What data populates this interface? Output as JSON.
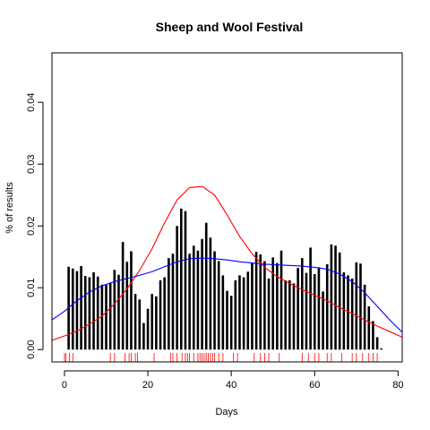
{
  "chart_data": {
    "type": "bar",
    "title": "Sheep and Wool Festival",
    "xlabel": "Days",
    "ylabel": "% of results",
    "xlim": [
      -3,
      81
    ],
    "ylim": [
      -0.002,
      0.048
    ],
    "x_ticks": [
      0,
      20,
      40,
      60,
      80
    ],
    "y_ticks": [
      0.0,
      0.01,
      0.02,
      0.03,
      0.04
    ],
    "x_tick_labels": [
      "0",
      "20",
      "40",
      "60",
      "80"
    ],
    "y_tick_labels": [
      "0.00",
      "0.01",
      "0.02",
      "0.03",
      "0.04"
    ],
    "bars": {
      "color": "#000000",
      "x": [
        1,
        2,
        3,
        4,
        5,
        6,
        7,
        8,
        9,
        10,
        11,
        12,
        13,
        14,
        15,
        16,
        17,
        18,
        19,
        20,
        21,
        22,
        23,
        24,
        25,
        26,
        27,
        28,
        29,
        30,
        31,
        32,
        33,
        34,
        35,
        36,
        37,
        38,
        39,
        40,
        41,
        42,
        43,
        44,
        45,
        46,
        47,
        48,
        49,
        50,
        51,
        52,
        53,
        54,
        55,
        56,
        57,
        58,
        59,
        60,
        61,
        62,
        63,
        64,
        65,
        66,
        67,
        68,
        69,
        70,
        71,
        72,
        73,
        74,
        75,
        76,
        77
      ],
      "values": [
        0.0134,
        0.0131,
        0.0127,
        0.0135,
        0.0119,
        0.0117,
        0.0125,
        0.0118,
        0.0105,
        0.0105,
        0.0108,
        0.0129,
        0.0121,
        0.0174,
        0.0142,
        0.0159,
        0.009,
        0.0081,
        0.0043,
        0.0066,
        0.009,
        0.0086,
        0.0112,
        0.0117,
        0.0148,
        0.0155,
        0.02,
        0.0228,
        0.0224,
        0.0155,
        0.0168,
        0.016,
        0.0179,
        0.0205,
        0.0181,
        0.0159,
        0.0143,
        0.012,
        0.0095,
        0.0087,
        0.0112,
        0.012,
        0.0117,
        0.0126,
        0.014,
        0.0158,
        0.0154,
        0.0143,
        0.0115,
        0.0149,
        0.014,
        0.016,
        0.0112,
        0.0112,
        0.0107,
        0.0132,
        0.0148,
        0.0124,
        0.0165,
        0.0122,
        0.0133,
        0.0094,
        0.0138,
        0.017,
        0.0168,
        0.0157,
        0.0125,
        0.012,
        0.0115,
        0.0141,
        0.0139,
        0.0105,
        0.007,
        0.0046,
        0.002,
        0.0002,
        0.0
      ]
    },
    "series": [
      {
        "color": "#ff0000",
        "type": "line",
        "x": [
          -3,
          0,
          3,
          6,
          9,
          12,
          15,
          18,
          21,
          24,
          27,
          30,
          33,
          36,
          39,
          42,
          45,
          48,
          51,
          54,
          57,
          60,
          63,
          66,
          69,
          72,
          75,
          78,
          81
        ],
        "y": [
          0.0015,
          0.0022,
          0.003,
          0.0041,
          0.0054,
          0.0074,
          0.0098,
          0.0128,
          0.0163,
          0.0205,
          0.0242,
          0.0262,
          0.0264,
          0.025,
          0.0218,
          0.0183,
          0.0155,
          0.0133,
          0.0118,
          0.0107,
          0.0097,
          0.0088,
          0.0079,
          0.0068,
          0.0058,
          0.0048,
          0.0038,
          0.0029,
          0.002
        ]
      },
      {
        "color": "#0000ff",
        "type": "line",
        "x": [
          -3,
          0,
          3,
          6,
          9,
          12,
          15,
          18,
          21,
          24,
          27,
          30,
          33,
          36,
          39,
          42,
          45,
          48,
          51,
          54,
          57,
          60,
          63,
          66,
          69,
          72,
          75,
          78,
          81
        ],
        "y": [
          0.0048,
          0.0062,
          0.0079,
          0.0093,
          0.0103,
          0.011,
          0.0115,
          0.012,
          0.0126,
          0.0134,
          0.0142,
          0.0147,
          0.0148,
          0.0147,
          0.0145,
          0.0142,
          0.014,
          0.0138,
          0.0137,
          0.0136,
          0.0135,
          0.0133,
          0.013,
          0.0122,
          0.011,
          0.0092,
          0.007,
          0.0048,
          0.0028
        ]
      }
    ],
    "rug": {
      "color": "#ff0000",
      "x": [
        0,
        0.3,
        1.2,
        2,
        11,
        12,
        14.5,
        15.5,
        16,
        17,
        17.5,
        21.5,
        25.5,
        26,
        27,
        28.2,
        29,
        29.5,
        30,
        31,
        32,
        32.5,
        33,
        33.5,
        34,
        34.5,
        35,
        35.5,
        36,
        37,
        38,
        40.5,
        41.5,
        45.5,
        47,
        48,
        49,
        51.5,
        57,
        58.5,
        60,
        61,
        63,
        64,
        66.5,
        69,
        70,
        71.5,
        73,
        74,
        75
      ]
    }
  }
}
